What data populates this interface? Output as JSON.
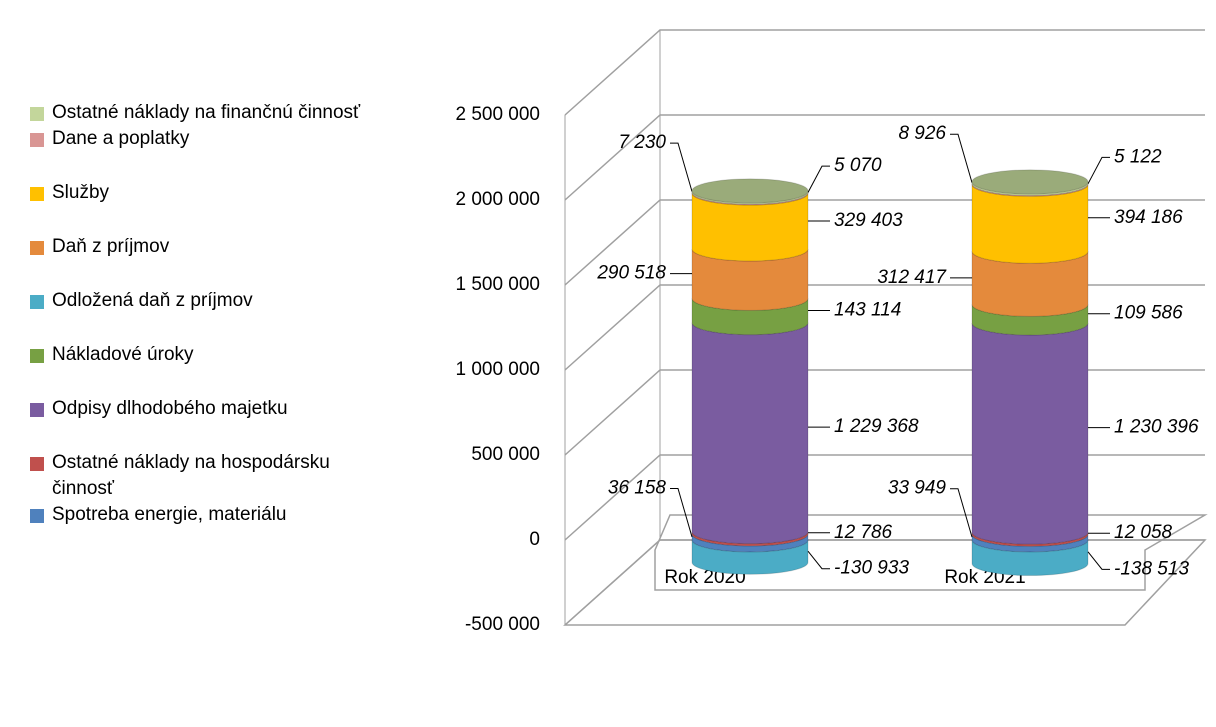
{
  "chart_data": {
    "type": "bar",
    "stacked": true,
    "style": "3d-cylinder",
    "categories": [
      "Rok 2020",
      "Rok 2021"
    ],
    "series": [
      {
        "name": "Ostatné náklady na finančnú činnosť",
        "color": "#c3d69b",
        "values": [
          7230,
          8926
        ],
        "value_labels": [
          "7 230",
          "8 926"
        ]
      },
      {
        "name": "Dane a poplatky",
        "color": "#d99694",
        "values": [
          5070,
          5122
        ],
        "value_labels": [
          "5 070",
          "5 122"
        ]
      },
      {
        "name": "Služby",
        "color": "#ffc000",
        "values": [
          329403,
          394186
        ],
        "value_labels": [
          "329 403",
          "394 186"
        ]
      },
      {
        "name": "Daň z príjmov",
        "color": "#e48a3c",
        "values": [
          290518,
          312417
        ],
        "value_labels": [
          "290 518",
          "312 417"
        ]
      },
      {
        "name": "Odložená daň z príjmov",
        "color": "#4bacc6",
        "values": [
          -130933,
          -138513
        ],
        "value_labels": [
          "-130 933",
          "-138 513"
        ]
      },
      {
        "name": "Nákladové úroky",
        "color": "#77a043",
        "values": [
          143114,
          109586
        ],
        "value_labels": [
          "143 114",
          "109 586"
        ]
      },
      {
        "name": "Odpisy dlhodobého majetku",
        "color": "#7a5ca0",
        "values": [
          1229368,
          1230396
        ],
        "value_labels": [
          "1 229 368",
          "1 230 396"
        ]
      },
      {
        "name": "Ostatné náklady na hospodársku činnosť",
        "color": "#c0504d",
        "values": [
          12786,
          12058
        ],
        "value_labels": [
          "12 786",
          "12 058"
        ]
      },
      {
        "name": "Spotreba energie, materiálu",
        "color": "#4f81bd",
        "values": [
          36158,
          33949
        ],
        "value_labels": [
          "36 158",
          "33 949"
        ]
      }
    ],
    "ylim": [
      -500000,
      2500000
    ],
    "yticks": [
      {
        "value": -500000,
        "label": "-500 000"
      },
      0,
      {
        "value": 500000,
        "label": "500 000"
      },
      {
        "value": 1000000,
        "label": "1 000 000"
      },
      {
        "value": 1500000,
        "label": "1 500 000"
      },
      {
        "value": 2000000,
        "label": "2 000 000"
      },
      {
        "value": 2500000,
        "label": "2 500 000"
      }
    ],
    "grid": true,
    "legend": "left"
  }
}
